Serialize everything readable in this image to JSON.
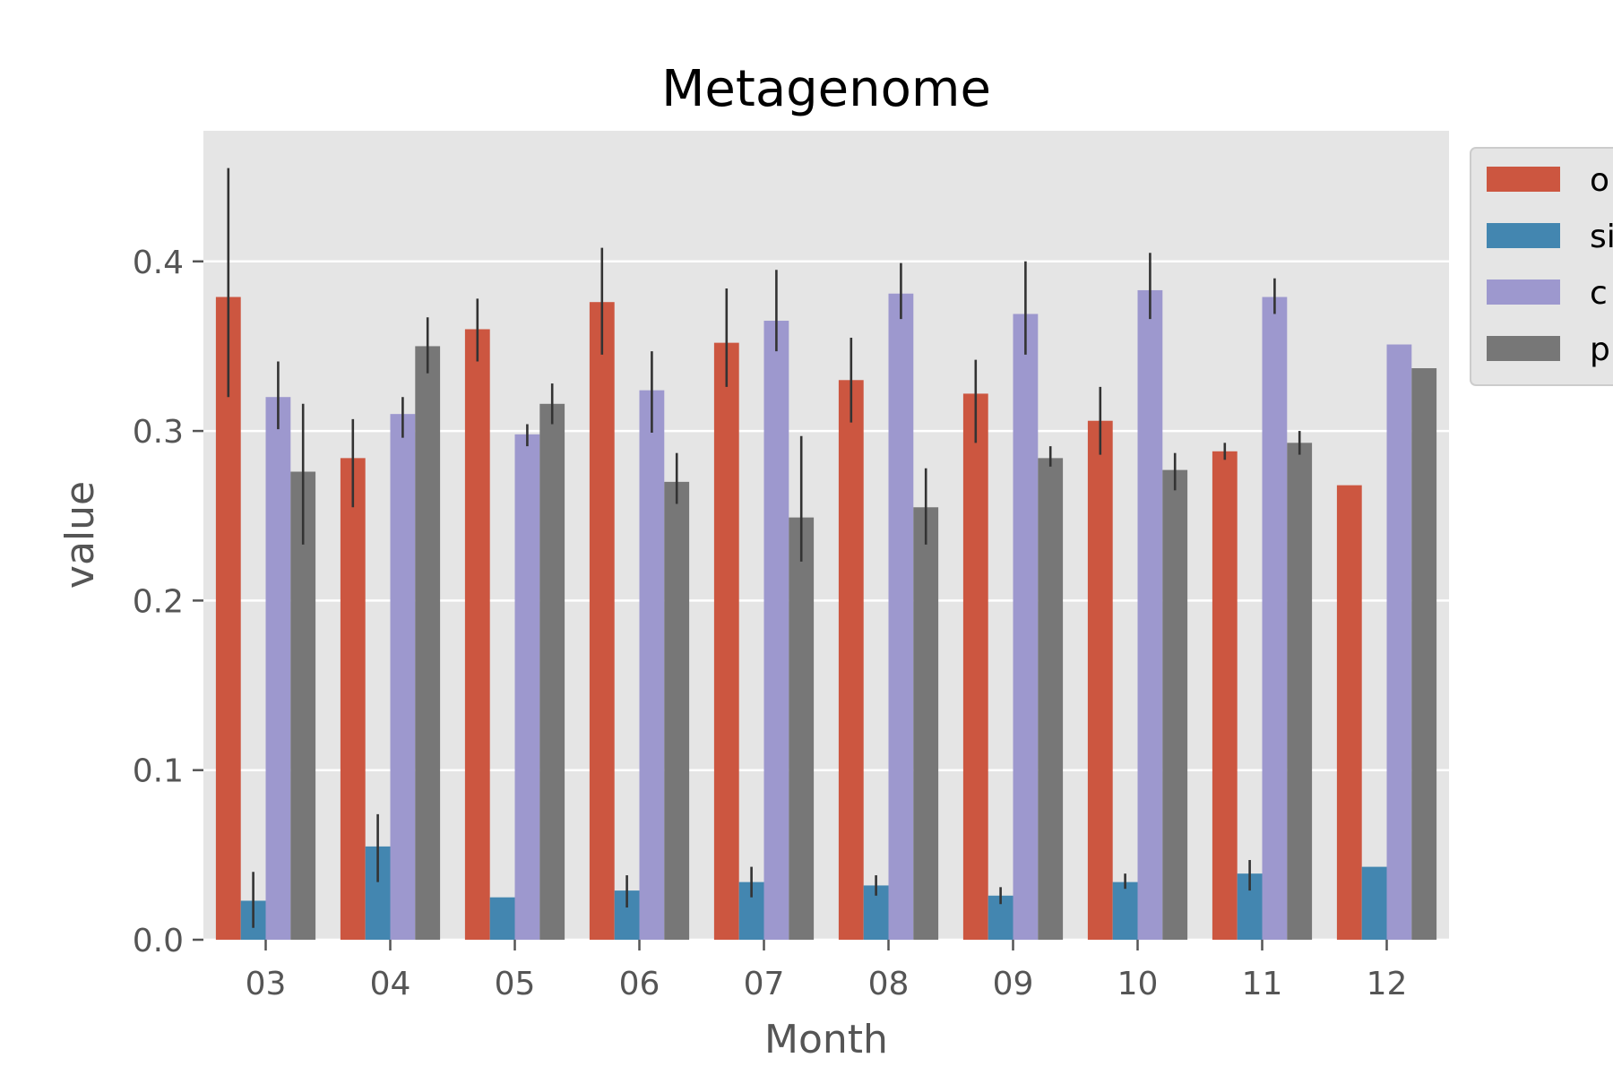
{
  "chart_data": {
    "type": "bar",
    "title": "Metagenome",
    "xlabel": "Month",
    "ylabel": "value",
    "categories": [
      "03",
      "04",
      "05",
      "06",
      "07",
      "08",
      "09",
      "10",
      "11",
      "12"
    ],
    "ylim": [
      0,
      0.477
    ],
    "yticks": [
      0.0,
      0.1,
      0.2,
      0.3,
      0.4
    ],
    "ytick_labels": [
      "0.0",
      "0.1",
      "0.2",
      "0.3",
      "0.4"
    ],
    "grid": true,
    "legend_position": "outside-top-right",
    "series": [
      {
        "name": "o",
        "color": "#cc5640",
        "values": [
          0.379,
          0.284,
          0.36,
          0.376,
          0.352,
          0.33,
          0.322,
          0.306,
          0.288,
          0.268
        ],
        "error_low": [
          0.32,
          0.255,
          0.341,
          0.345,
          0.326,
          0.305,
          0.293,
          0.286,
          0.283,
          null
        ],
        "error_high": [
          0.455,
          0.307,
          0.378,
          0.408,
          0.384,
          0.355,
          0.342,
          0.326,
          0.293,
          null
        ]
      },
      {
        "name": "si",
        "color": "#4386b0",
        "values": [
          0.023,
          0.055,
          0.025,
          0.029,
          0.034,
          0.032,
          0.026,
          0.034,
          0.039,
          0.043
        ],
        "error_low": [
          0.007,
          0.034,
          null,
          0.019,
          0.025,
          0.026,
          0.021,
          0.03,
          0.029,
          null
        ],
        "error_high": [
          0.04,
          0.074,
          null,
          0.038,
          0.043,
          0.038,
          0.031,
          0.039,
          0.047,
          null
        ]
      },
      {
        "name": "c",
        "color": "#9d98ce",
        "values": [
          0.32,
          0.31,
          0.298,
          0.324,
          0.365,
          0.381,
          0.369,
          0.383,
          0.379,
          0.351
        ],
        "error_low": [
          0.301,
          0.296,
          0.291,
          0.299,
          0.347,
          0.366,
          0.345,
          0.366,
          0.369,
          null
        ],
        "error_high": [
          0.341,
          0.32,
          0.304,
          0.347,
          0.395,
          0.399,
          0.4,
          0.405,
          0.39,
          null
        ]
      },
      {
        "name": "p",
        "color": "#777777",
        "values": [
          0.276,
          0.35,
          0.316,
          0.27,
          0.249,
          0.255,
          0.284,
          0.277,
          0.293,
          0.337
        ],
        "error_low": [
          0.233,
          0.334,
          0.304,
          0.257,
          0.223,
          0.233,
          0.279,
          0.265,
          0.286,
          null
        ],
        "error_high": [
          0.316,
          0.367,
          0.328,
          0.287,
          0.297,
          0.278,
          0.291,
          0.287,
          0.3,
          null
        ]
      }
    ]
  }
}
